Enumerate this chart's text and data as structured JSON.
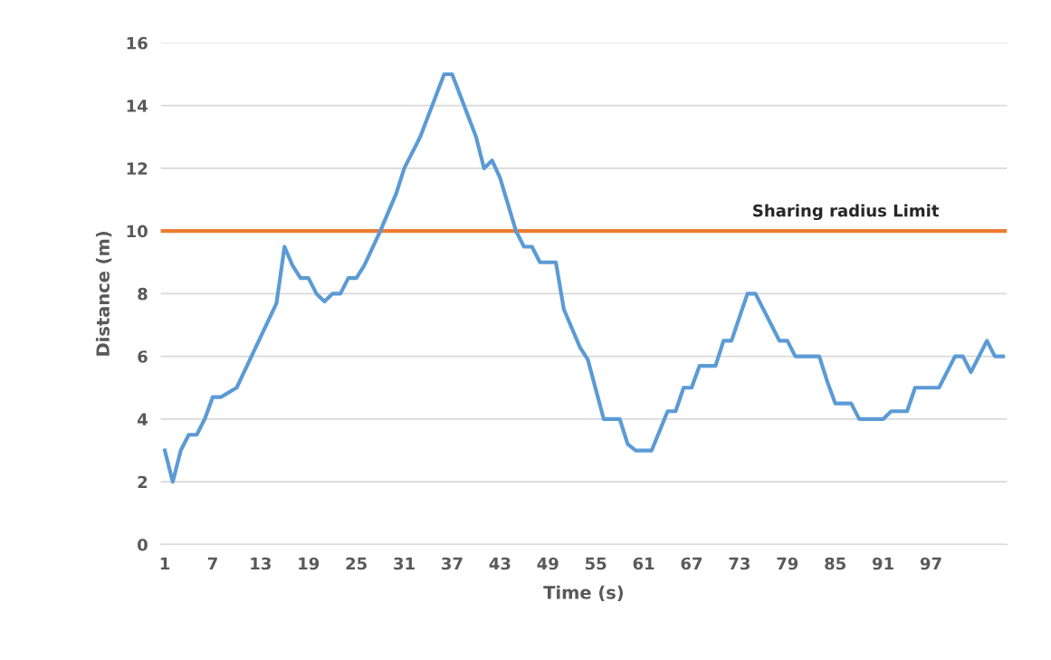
{
  "chart_data": {
    "type": "line",
    "xlabel": "Time (s)",
    "ylabel": "Distance (m)",
    "xlim": [
      0.5,
      106.5
    ],
    "xticks": [
      1,
      7,
      13,
      19,
      25,
      31,
      37,
      43,
      49,
      55,
      61,
      67,
      73,
      79,
      85,
      91,
      97
    ],
    "ylim": [
      0,
      16
    ],
    "yticks": [
      0,
      2,
      4,
      6,
      8,
      10,
      12,
      14,
      16
    ],
    "grid": "y",
    "marker": "none",
    "line_style": "solid",
    "series": [
      {
        "color": "#5b9bd5",
        "x": [
          1,
          2,
          3,
          4,
          5,
          6,
          7,
          8,
          10,
          15,
          16,
          17,
          18,
          19,
          20,
          21,
          22,
          23,
          24,
          25,
          26,
          28,
          30,
          31,
          33,
          36,
          37,
          40,
          41,
          42,
          43,
          45,
          46,
          47,
          48,
          50,
          51,
          53,
          54,
          56,
          58,
          59,
          60,
          62,
          64,
          65,
          66,
          67,
          68,
          70,
          71,
          72,
          73,
          74,
          75,
          77,
          78,
          79,
          80,
          83,
          84,
          85,
          87,
          88,
          91,
          92,
          94,
          95,
          98,
          100,
          101,
          102,
          104,
          105,
          106
        ],
        "values": [
          3,
          2,
          3,
          3.5,
          3.5,
          4,
          4.7,
          4.7,
          5,
          7.7,
          9.5,
          8.9,
          8.5,
          8.5,
          8,
          7.75,
          8,
          8,
          8.5,
          8.5,
          8.9,
          10,
          11.2,
          12,
          13,
          15,
          15,
          13,
          12,
          12.25,
          11.7,
          10,
          9.5,
          9.5,
          9,
          9,
          7.5,
          6.3,
          5.9,
          4,
          4,
          3.2,
          3,
          3,
          4.25,
          4.25,
          5,
          5,
          5.7,
          5.7,
          6.5,
          6.5,
          7.25,
          8,
          8,
          7,
          6.5,
          6.5,
          6,
          6,
          5.2,
          4.5,
          4.5,
          4,
          4,
          4.25,
          4.25,
          5,
          5,
          6,
          6,
          5.5,
          6.5,
          6,
          6
        ]
      }
    ],
    "ref_lines": [
      {
        "axis": "y",
        "value": 10,
        "label": "Sharing radius Limit",
        "color": "#ed7d31"
      }
    ]
  }
}
